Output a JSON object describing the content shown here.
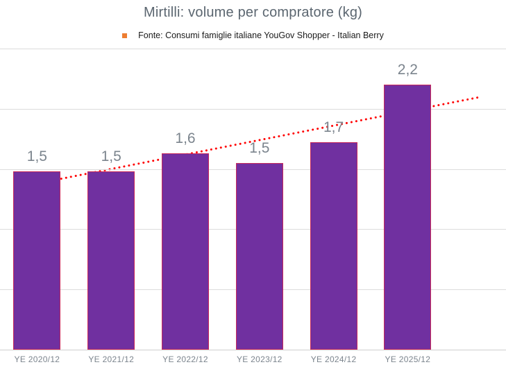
{
  "chart_data": {
    "type": "bar",
    "title": "Mirtilli: volume per compratore (kg)",
    "legend": [
      {
        "label": "Fonte: Consumi famiglie italiane YouGov Shopper - Italian Berry",
        "marker_color": "#ED7D31"
      }
    ],
    "legend_position": "top",
    "categories": [
      "YE 2020/12",
      "YE 2021/12",
      "YE 2022/12",
      "YE 2023/12",
      "YE 2024/12",
      "YE 2025/12"
    ],
    "values": [
      1.5,
      1.5,
      1.6,
      1.5,
      1.7,
      2.2
    ],
    "value_labels": [
      "1,5",
      "1,5",
      "1,6",
      "1,5",
      "1,7",
      "2,2"
    ],
    "bar_heights_measured": [
      1.48,
      1.48,
      1.63,
      1.55,
      1.72,
      2.2
    ],
    "xlabel": "",
    "ylabel": "",
    "ylim": [
      0,
      2.5
    ],
    "y_axis_tick_labels_visible": false,
    "gridlines": {
      "values": [
        0.5,
        1.0,
        1.5,
        2.0,
        2.5
      ],
      "color": "#dcdcdc"
    },
    "bar_color": "#7030A0",
    "bar_border_color": "#C9295B",
    "data_label_color": "#7B848D",
    "axis_label_color": "#7B848D",
    "title_color": "#5b6670",
    "trendline": {
      "type": "linear",
      "style": "dotted",
      "color": "#FF0000",
      "start_category_index": 0,
      "end_category_index": 6,
      "start_value": 1.38,
      "end_value": 2.1,
      "forecast_periods": 1
    }
  }
}
